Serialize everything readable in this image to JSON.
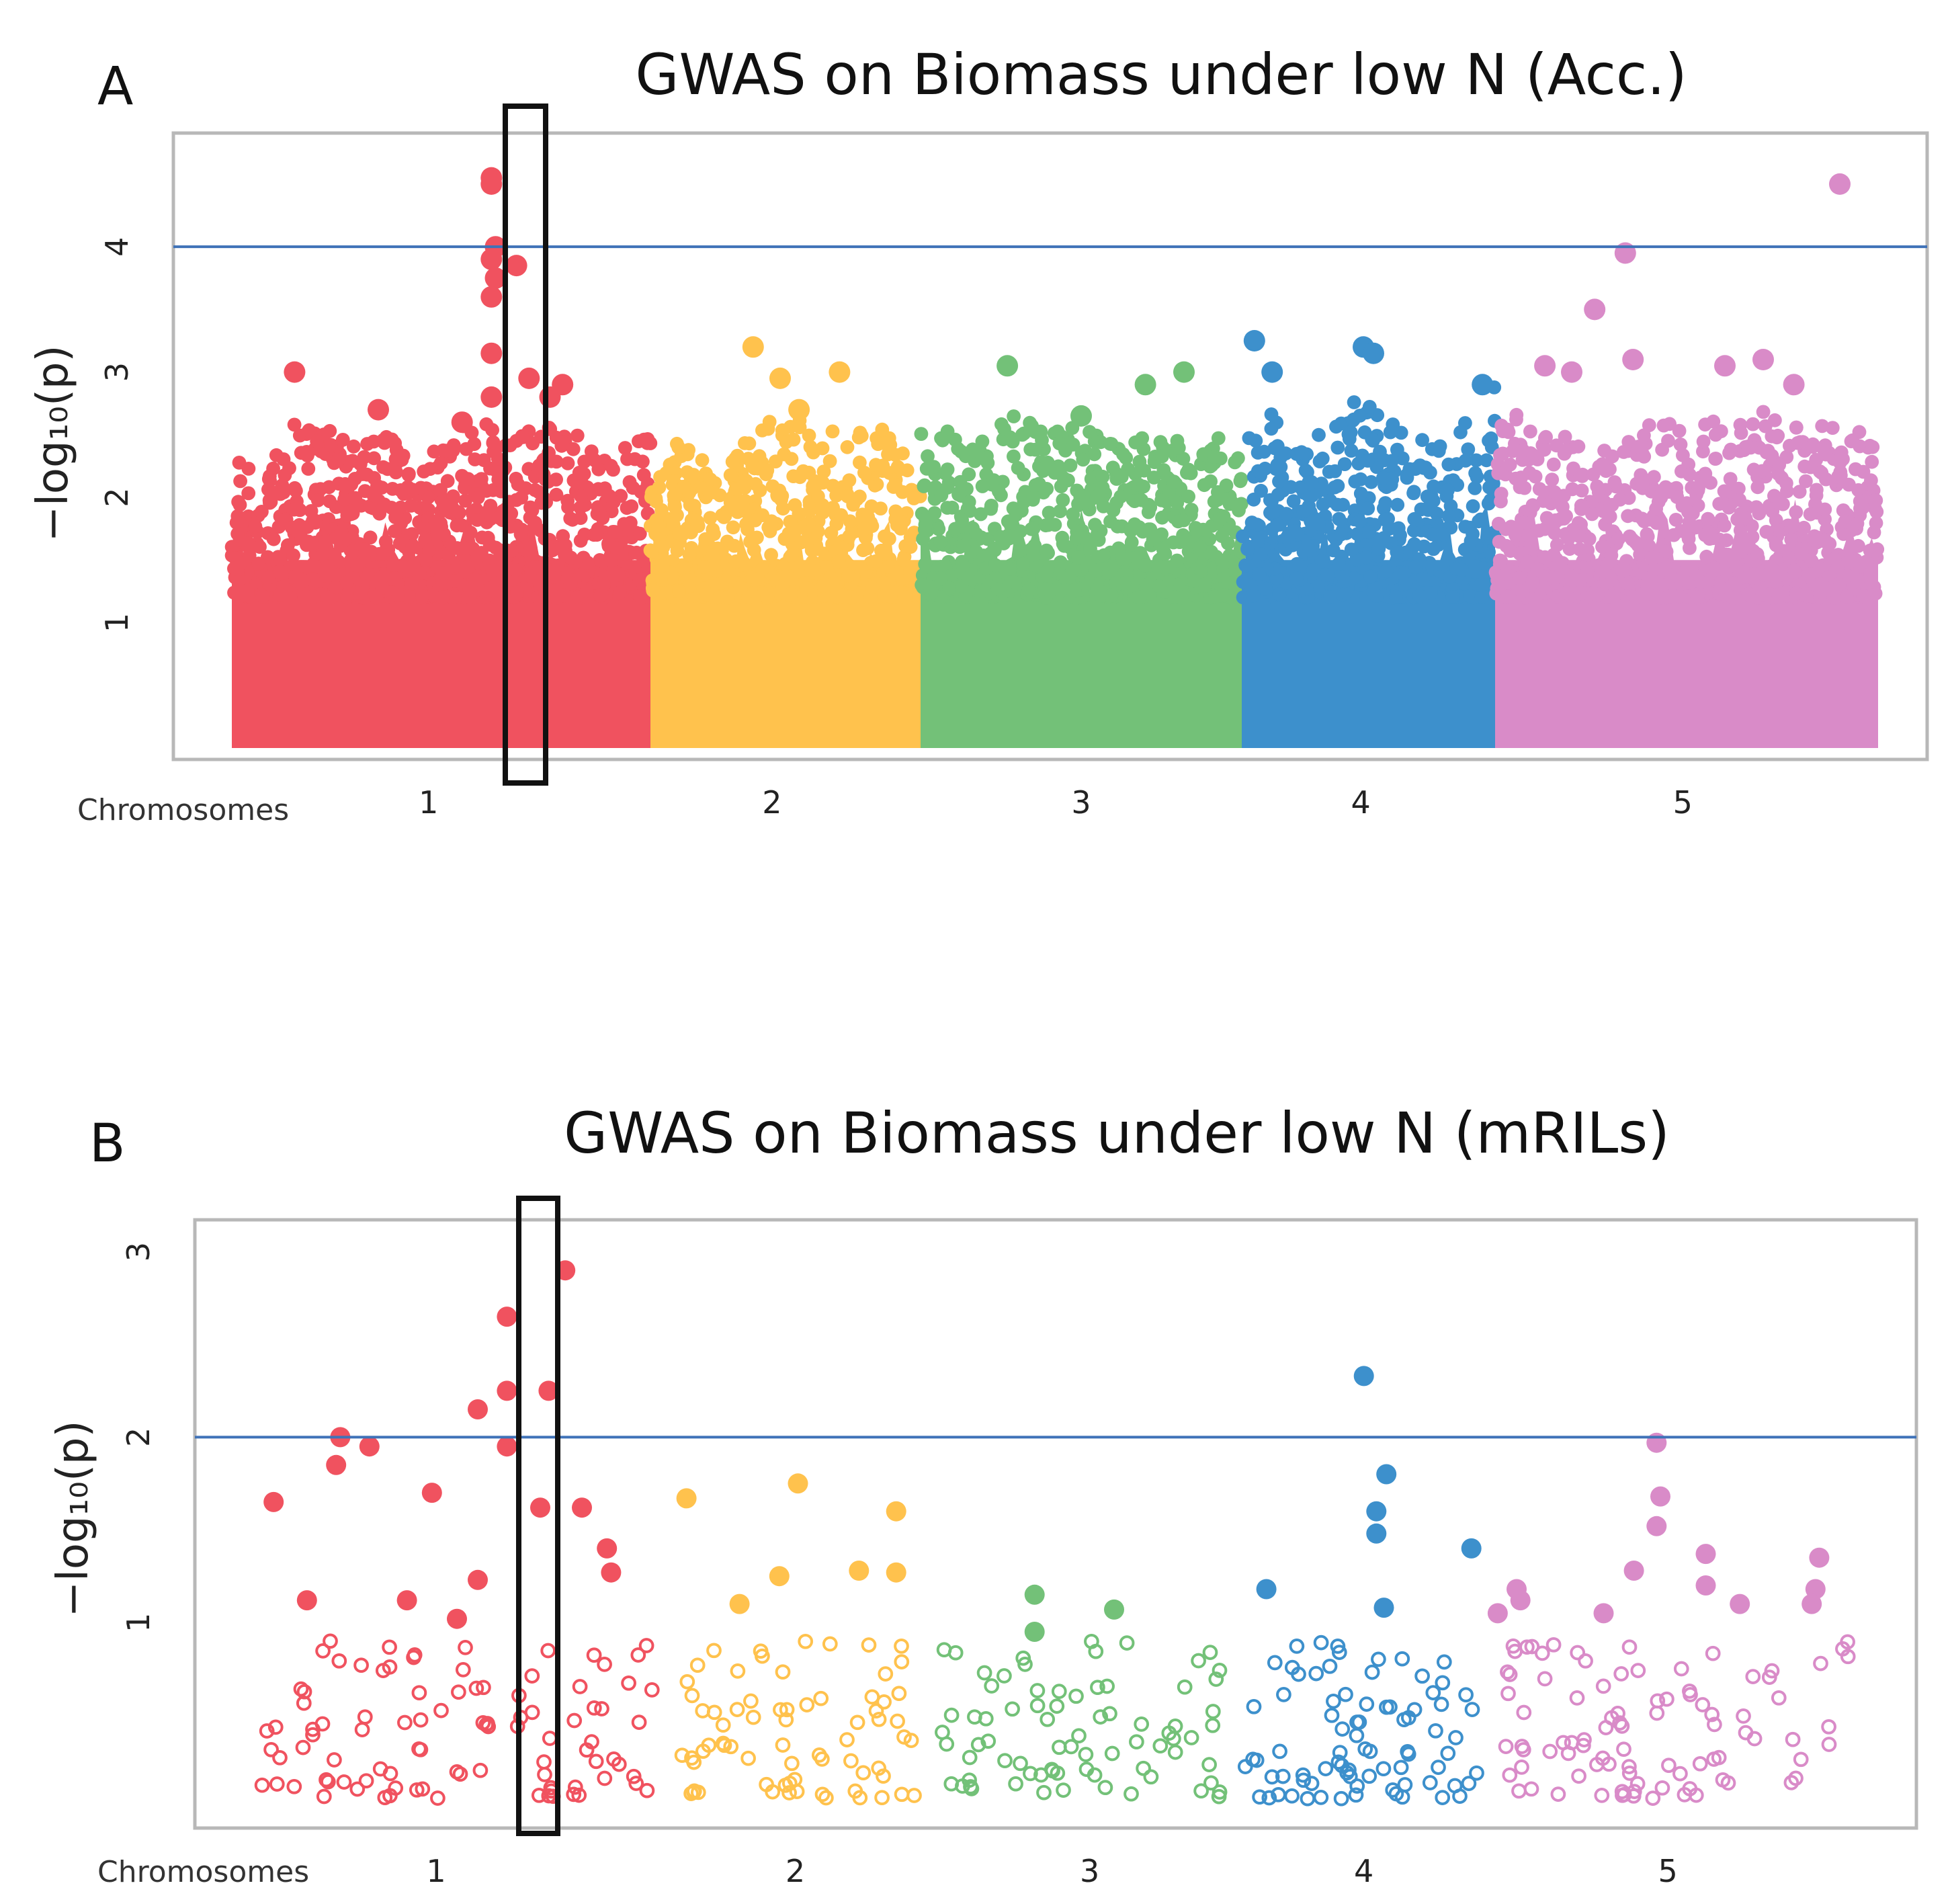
{
  "chart_data": [
    {
      "type": "scatter",
      "panel_label": "A",
      "title": "GWAS on Biomass under low N (Acc.)",
      "xlabel": "Chromosomes",
      "ylabel": "−log₁₀(p)",
      "ylim": [
        0,
        4.8
      ],
      "y_ticks": [
        1,
        2,
        3,
        4
      ],
      "threshold": 4.0,
      "marker": "filled",
      "highlight": {
        "chromosome": 1,
        "position": 0.62
      },
      "chromosomes": [
        {
          "name": "1",
          "color": "#f0525f",
          "tick": 0.47,
          "density": 900,
          "envelope": [
            [
              0.0,
              2.4
            ],
            [
              0.05,
              2.2
            ],
            [
              0.12,
              2.6
            ],
            [
              0.2,
              2.6
            ],
            [
              0.3,
              2.4
            ],
            [
              0.38,
              2.5
            ],
            [
              0.45,
              2.2
            ],
            [
              0.52,
              2.6
            ],
            [
              0.6,
              2.6
            ],
            [
              0.68,
              2.5
            ],
            [
              0.78,
              2.6
            ],
            [
              0.88,
              2.4
            ],
            [
              1.0,
              2.5
            ]
          ],
          "peaks": [
            {
              "pos": 0.15,
              "y": 3.0
            },
            {
              "pos": 0.35,
              "y": 2.7
            },
            {
              "pos": 0.55,
              "y": 2.6
            },
            {
              "pos": 0.62,
              "y": 4.55
            },
            {
              "pos": 0.62,
              "y": 4.5
            },
            {
              "pos": 0.63,
              "y": 4.0
            },
            {
              "pos": 0.62,
              "y": 3.9
            },
            {
              "pos": 0.63,
              "y": 3.75
            },
            {
              "pos": 0.62,
              "y": 3.6
            },
            {
              "pos": 0.62,
              "y": 3.15
            },
            {
              "pos": 0.62,
              "y": 2.8
            },
            {
              "pos": 0.68,
              "y": 3.85
            },
            {
              "pos": 0.71,
              "y": 2.95
            },
            {
              "pos": 0.76,
              "y": 2.8
            },
            {
              "pos": 0.79,
              "y": 2.9
            }
          ]
        },
        {
          "name": "2",
          "color": "#ffc24d",
          "tick": 0.45,
          "density": 550,
          "envelope": [
            [
              0.0,
              2.1
            ],
            [
              0.1,
              2.5
            ],
            [
              0.25,
              2.2
            ],
            [
              0.4,
              2.6
            ],
            [
              0.55,
              2.7
            ],
            [
              0.7,
              2.5
            ],
            [
              0.85,
              2.6
            ],
            [
              1.0,
              2.2
            ]
          ],
          "peaks": [
            {
              "pos": 0.38,
              "y": 3.2
            },
            {
              "pos": 0.48,
              "y": 2.95
            },
            {
              "pos": 0.7,
              "y": 3.0
            },
            {
              "pos": 0.55,
              "y": 2.7
            }
          ]
        },
        {
          "name": "3",
          "color": "#73c178",
          "tick": 0.5,
          "density": 650,
          "envelope": [
            [
              0.0,
              2.6
            ],
            [
              0.15,
              2.5
            ],
            [
              0.3,
              2.7
            ],
            [
              0.45,
              2.6
            ],
            [
              0.6,
              2.5
            ],
            [
              0.75,
              2.5
            ],
            [
              0.9,
              2.5
            ],
            [
              1.0,
              2.4
            ]
          ],
          "peaks": [
            {
              "pos": 0.27,
              "y": 3.05
            },
            {
              "pos": 0.7,
              "y": 2.9
            },
            {
              "pos": 0.82,
              "y": 3.0
            },
            {
              "pos": 0.5,
              "y": 2.65
            }
          ]
        },
        {
          "name": "4",
          "color": "#3d90cc",
          "tick": 0.47,
          "density": 500,
          "envelope": [
            [
              0.0,
              2.5
            ],
            [
              0.1,
              2.7
            ],
            [
              0.25,
              2.4
            ],
            [
              0.45,
              2.8
            ],
            [
              0.6,
              2.6
            ],
            [
              0.8,
              2.4
            ],
            [
              1.0,
              2.9
            ]
          ],
          "peaks": [
            {
              "pos": 0.05,
              "y": 3.25
            },
            {
              "pos": 0.12,
              "y": 3.0
            },
            {
              "pos": 0.48,
              "y": 3.2
            },
            {
              "pos": 0.52,
              "y": 3.15
            },
            {
              "pos": 0.95,
              "y": 2.9
            }
          ]
        },
        {
          "name": "5",
          "color": "#d98bc8",
          "tick": 0.49,
          "density": 750,
          "envelope": [
            [
              0.0,
              2.8
            ],
            [
              0.1,
              2.6
            ],
            [
              0.2,
              2.5
            ],
            [
              0.3,
              2.4
            ],
            [
              0.4,
              2.6
            ],
            [
              0.55,
              2.6
            ],
            [
              0.7,
              2.7
            ],
            [
              0.85,
              2.6
            ],
            [
              1.0,
              2.5
            ]
          ],
          "peaks": [
            {
              "pos": 0.13,
              "y": 3.05
            },
            {
              "pos": 0.2,
              "y": 3.0
            },
            {
              "pos": 0.26,
              "y": 3.5
            },
            {
              "pos": 0.34,
              "y": 3.95
            },
            {
              "pos": 0.36,
              "y": 3.1
            },
            {
              "pos": 0.6,
              "y": 3.05
            },
            {
              "pos": 0.7,
              "y": 3.1
            },
            {
              "pos": 0.78,
              "y": 2.9
            },
            {
              "pos": 0.9,
              "y": 4.5
            }
          ]
        }
      ]
    },
    {
      "type": "scatter",
      "panel_label": "B",
      "title": "GWAS on Biomass under low N (mRILs)",
      "xlabel": "Chromosomes",
      "ylabel": "−log₁₀(p)",
      "ylim": [
        0,
        3.1
      ],
      "y_ticks": [
        1,
        2,
        3
      ],
      "threshold": 2.0,
      "marker": "open",
      "highlight": {
        "chromosome": 1,
        "position": 0.62
      },
      "chromosomes": [
        {
          "name": "1",
          "color": "#f0525f",
          "tick": 0.45,
          "density": 95,
          "peaks": [
            {
              "pos": 0.06,
              "y": 1.65
            },
            {
              "pos": 0.22,
              "y": 2.0
            },
            {
              "pos": 0.21,
              "y": 1.85
            },
            {
              "pos": 0.29,
              "y": 1.95
            },
            {
              "pos": 0.44,
              "y": 1.7
            },
            {
              "pos": 0.55,
              "y": 2.15
            },
            {
              "pos": 0.62,
              "y": 2.65
            },
            {
              "pos": 0.62,
              "y": 2.25
            },
            {
              "pos": 0.62,
              "y": 1.95
            },
            {
              "pos": 0.72,
              "y": 2.25
            },
            {
              "pos": 0.76,
              "y": 2.9
            },
            {
              "pos": 0.7,
              "y": 1.62
            },
            {
              "pos": 0.8,
              "y": 1.62
            },
            {
              "pos": 0.86,
              "y": 1.4
            },
            {
              "pos": 0.87,
              "y": 1.27
            },
            {
              "pos": 0.55,
              "y": 1.23
            },
            {
              "pos": 0.14,
              "y": 1.12
            },
            {
              "pos": 0.38,
              "y": 1.12
            },
            {
              "pos": 0.5,
              "y": 1.02
            }
          ]
        },
        {
          "name": "2",
          "color": "#ffc24d",
          "tick": 0.49,
          "density": 70,
          "peaks": [
            {
              "pos": 0.08,
              "y": 1.67
            },
            {
              "pos": 0.5,
              "y": 1.75
            },
            {
              "pos": 0.87,
              "y": 1.6
            },
            {
              "pos": 0.73,
              "y": 1.28
            },
            {
              "pos": 0.87,
              "y": 1.27
            },
            {
              "pos": 0.43,
              "y": 1.25
            },
            {
              "pos": 0.28,
              "y": 1.1
            }
          ]
        },
        {
          "name": "3",
          "color": "#73c178",
          "tick": 0.52,
          "density": 75,
          "peaks": [
            {
              "pos": 0.34,
              "y": 1.15
            },
            {
              "pos": 0.6,
              "y": 1.07
            },
            {
              "pos": 0.34,
              "y": 0.95
            }
          ]
        },
        {
          "name": "4",
          "color": "#3d90cc",
          "tick": 0.51,
          "density": 80,
          "peaks": [
            {
              "pos": 0.51,
              "y": 2.33
            },
            {
              "pos": 0.6,
              "y": 1.8
            },
            {
              "pos": 0.56,
              "y": 1.6
            },
            {
              "pos": 0.56,
              "y": 1.48
            },
            {
              "pos": 0.94,
              "y": 1.4
            },
            {
              "pos": 0.12,
              "y": 1.18
            },
            {
              "pos": 0.59,
              "y": 1.08
            }
          ]
        },
        {
          "name": "5",
          "color": "#d98bc8",
          "tick": 0.48,
          "density": 90,
          "peaks": [
            {
              "pos": 0.45,
              "y": 1.97
            },
            {
              "pos": 0.46,
              "y": 1.68
            },
            {
              "pos": 0.45,
              "y": 1.52
            },
            {
              "pos": 0.58,
              "y": 1.37
            },
            {
              "pos": 0.39,
              "y": 1.28
            },
            {
              "pos": 0.58,
              "y": 1.2
            },
            {
              "pos": 0.67,
              "y": 1.1
            },
            {
              "pos": 0.88,
              "y": 1.35
            },
            {
              "pos": 0.87,
              "y": 1.18
            },
            {
              "pos": 0.86,
              "y": 1.1
            },
            {
              "pos": 0.08,
              "y": 1.18
            },
            {
              "pos": 0.09,
              "y": 1.12
            },
            {
              "pos": 0.03,
              "y": 1.05
            },
            {
              "pos": 0.31,
              "y": 1.05
            }
          ]
        }
      ]
    }
  ]
}
